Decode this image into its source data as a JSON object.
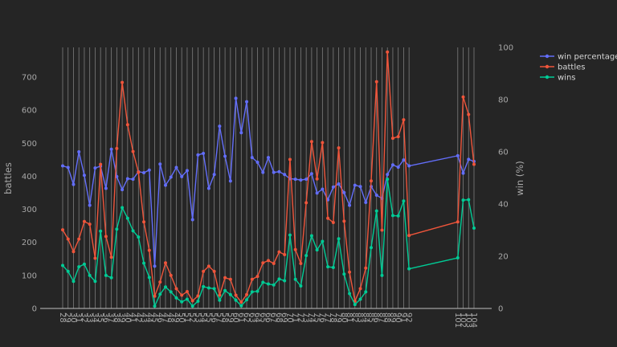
{
  "chart_data": {
    "type": "line",
    "title": "",
    "xlabel": "",
    "ylabel": "battles",
    "y2label": "win (%)",
    "ylim": [
      0,
      790
    ],
    "y2lim": [
      0,
      100
    ],
    "y_ticks": [
      0,
      100,
      200,
      300,
      400,
      500,
      600,
      700
    ],
    "y2_ticks": [
      0,
      20,
      40,
      60,
      80,
      100
    ],
    "grid": "vertical lines at each x",
    "legend_placement": "top-right",
    "x": [
      28,
      29,
      30,
      31,
      32,
      33,
      34,
      35,
      36,
      37,
      38,
      39,
      40,
      41,
      42,
      43,
      44,
      45,
      46,
      47,
      48,
      49,
      50,
      51,
      52,
      53,
      54,
      55,
      56,
      57,
      58,
      59,
      60,
      61,
      62,
      63,
      64,
      65,
      66,
      67,
      68,
      69,
      70,
      71,
      72,
      73,
      74,
      75,
      76,
      77,
      78,
      79,
      80,
      81,
      82,
      83,
      84,
      85,
      86,
      87,
      88,
      89,
      90,
      91,
      92,
      101,
      102,
      103,
      104
    ],
    "series": [
      {
        "name": "win percentage",
        "axis": "right",
        "color": "#636efa",
        "values": [
          54.6,
          54.0,
          47.5,
          60.0,
          51.0,
          39.5,
          53.8,
          54.5,
          46.0,
          61.0,
          50.5,
          45.5,
          49.7,
          49.5,
          52.4,
          52.0,
          53.0,
          16.2,
          55.3,
          47.2,
          50.3,
          54.0,
          50.5,
          52.8,
          34.0,
          58.8,
          59.4,
          46.0,
          51.3,
          69.8,
          58.3,
          48.8,
          80.5,
          67.3,
          79.2,
          57.8,
          56.0,
          52.1,
          57.8,
          52.1,
          52.4,
          51.3,
          49.7,
          49.5,
          49.2,
          49.5,
          51.6,
          44.2,
          45.7,
          41.6,
          46.5,
          47.7,
          44.4,
          39.5,
          47.2,
          46.7,
          40.6,
          46.7,
          43.4,
          42.1,
          51.3,
          55.0,
          54.1,
          56.9,
          54.6,
          58.5,
          51.8,
          57.1,
          56.3
        ]
      },
      {
        "name": "battles",
        "axis": "left",
        "color": "#ef553b",
        "values": [
          238,
          210,
          172,
          210,
          263,
          255,
          152,
          436,
          218,
          155,
          484,
          684,
          556,
          475,
          412,
          262,
          176,
          37,
          80,
          138,
          100,
          60,
          40,
          51,
          23,
          38,
          112,
          128,
          112,
          40,
          93,
          88,
          40,
          19,
          42,
          88,
          97,
          138,
          145,
          136,
          171,
          163,
          451,
          178,
          136,
          320,
          505,
          392,
          502,
          273,
          260,
          486,
          264,
          110,
          22,
          60,
          122,
          386,
          686,
          237,
          776,
          515,
          520,
          571,
          221,
          262,
          640,
          587,
          436
        ]
      },
      {
        "name": "wins",
        "axis": "left",
        "color": "#00cc96",
        "values": [
          130,
          112,
          82,
          126,
          134,
          100,
          82,
          234,
          100,
          93,
          240,
          305,
          273,
          235,
          216,
          137,
          94,
          7,
          43,
          65,
          50,
          32,
          20,
          28,
          7,
          22,
          66,
          62,
          60,
          25,
          54,
          42,
          25,
          8,
          26,
          50,
          52,
          79,
          74,
          71,
          89,
          84,
          222,
          88,
          68,
          160,
          220,
          177,
          203,
          126,
          124,
          211,
          104,
          45,
          12,
          28,
          50,
          184,
          295,
          100,
          391,
          281,
          280,
          325,
          120,
          153,
          328,
          329,
          243
        ]
      }
    ]
  }
}
